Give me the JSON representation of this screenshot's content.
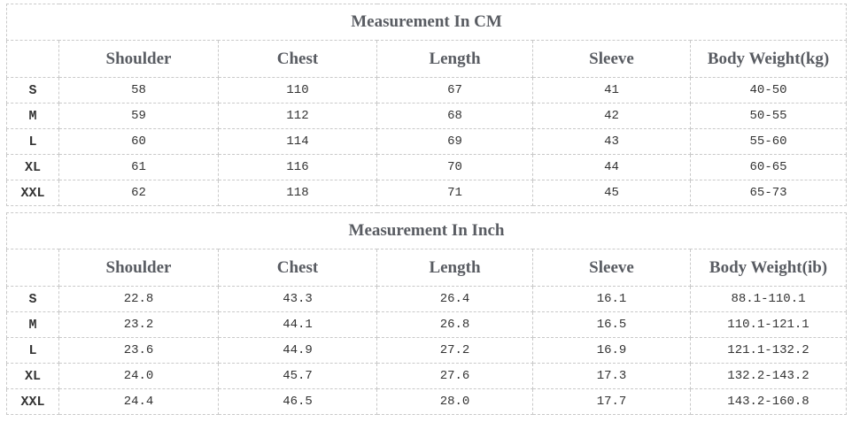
{
  "page": {
    "background": "#ffffff"
  },
  "colors": {
    "header_text": "#595c62",
    "data_text": "#333333",
    "border_dashed": "#c9c9c9"
  },
  "chart_data": [
    {
      "type": "table",
      "title": "Measurement In CM",
      "columns": [
        "",
        "Shoulder",
        "Chest",
        "Length",
        "Sleeve",
        "Body Weight(kg)"
      ],
      "rows": [
        [
          "S",
          "58",
          "110",
          "67",
          "41",
          "40-50"
        ],
        [
          "M",
          "59",
          "112",
          "68",
          "42",
          "50-55"
        ],
        [
          "L",
          "60",
          "114",
          "69",
          "43",
          "55-60"
        ],
        [
          "XL",
          "61",
          "116",
          "70",
          "44",
          "60-65"
        ],
        [
          "XXL",
          "62",
          "118",
          "71",
          "45",
          "65-73"
        ]
      ]
    },
    {
      "type": "table",
      "title": "Measurement In Inch",
      "columns": [
        "",
        "Shoulder",
        "Chest",
        "Length",
        "Sleeve",
        "Body Weight(ib)"
      ],
      "rows": [
        [
          "S",
          "22.8",
          "43.3",
          "26.4",
          "16.1",
          "88.1-110.1"
        ],
        [
          "M",
          "23.2",
          "44.1",
          "26.8",
          "16.5",
          "110.1-121.1"
        ],
        [
          "L",
          "23.6",
          "44.9",
          "27.2",
          "16.9",
          "121.1-132.2"
        ],
        [
          "XL",
          "24.0",
          "45.7",
          "27.6",
          "17.3",
          "132.2-143.2"
        ],
        [
          "XXL",
          "24.4",
          "46.5",
          "28.0",
          "17.7",
          "143.2-160.8"
        ]
      ]
    }
  ]
}
